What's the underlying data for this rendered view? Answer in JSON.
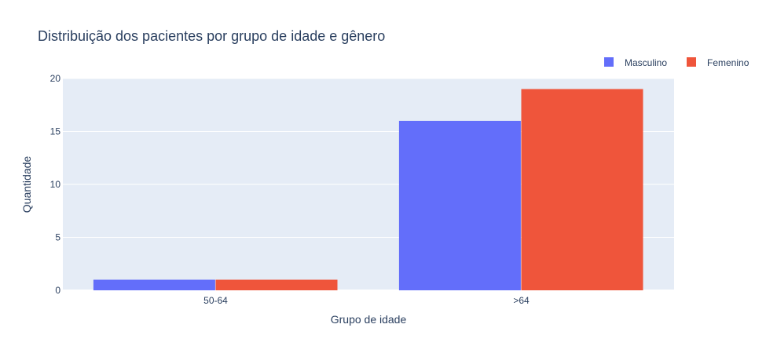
{
  "chart_data": {
    "type": "bar",
    "title": "Distribuição dos pacientes por grupo de idade e gênero",
    "xlabel": "Grupo de idade",
    "ylabel": "Quantidade",
    "categories": [
      "50-64",
      ">64"
    ],
    "series": [
      {
        "name": "Masculino",
        "values": [
          1,
          16
        ],
        "color": "#636efa"
      },
      {
        "name": "Femenino",
        "values": [
          1,
          19
        ],
        "color": "#ef553b"
      }
    ],
    "ylim": [
      0,
      20
    ],
    "yticks": [
      0,
      5,
      10,
      15,
      20
    ],
    "grid": true,
    "legend_position": "top-right",
    "background_color": "#e5ecf6",
    "grid_color": "#ffffff",
    "text_color": "#2a3f5f"
  }
}
